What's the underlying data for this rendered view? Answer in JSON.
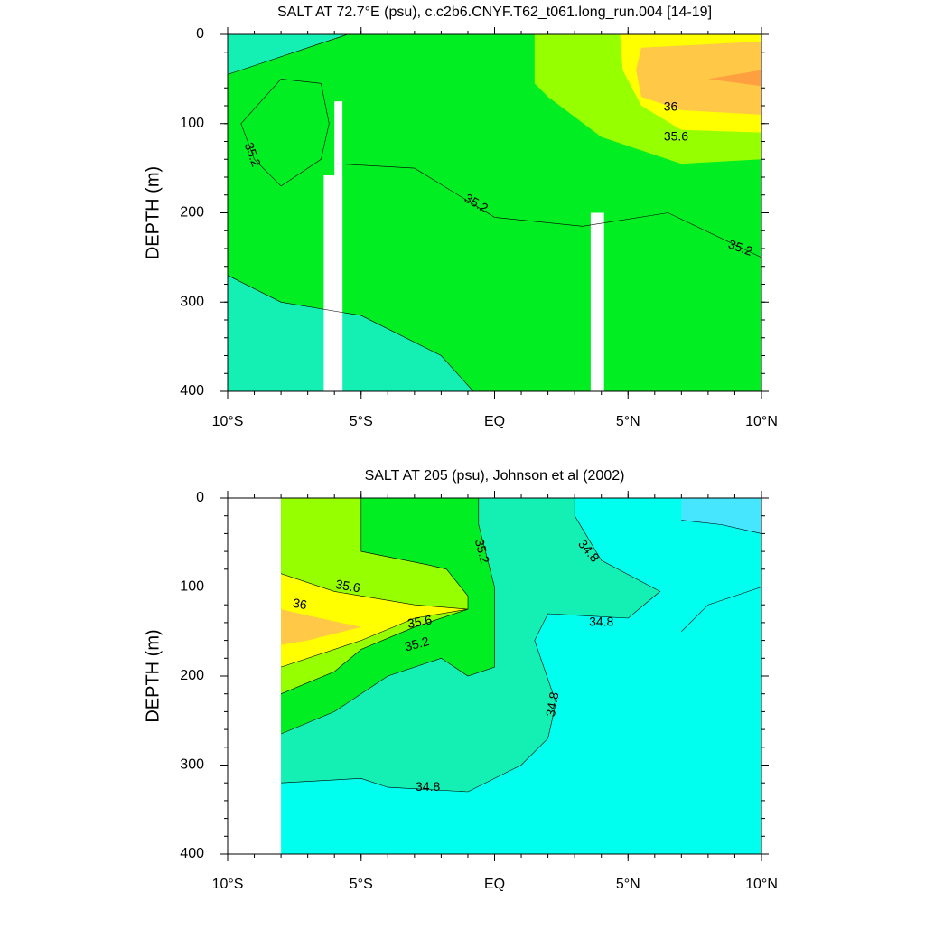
{
  "chart_data": [
    {
      "type": "contour",
      "title": "SALT AT  72.7°E (psu), c.c2b6.CNYF.T62_t061.long_run.004 [14-19]",
      "y_label": "DEPTH (m)",
      "xlim": [
        -10,
        10
      ],
      "xticks": [
        {
          "value": -10,
          "label": "10°S"
        },
        {
          "value": -5,
          "label": "5°S"
        },
        {
          "value": 0,
          "label": "EQ"
        },
        {
          "value": 5,
          "label": "5°N"
        },
        {
          "value": 10,
          "label": "10°N"
        }
      ],
      "ylim": [
        0,
        400
      ],
      "y_reversed": true,
      "yticks": [
        0,
        100,
        200,
        300,
        400
      ],
      "contour_labels": [
        35.2,
        35.2,
        35.2,
        36,
        35.6
      ]
    },
    {
      "type": "contour",
      "title": "SALT AT 205 (psu), Johnson et al (2002)",
      "y_label": "DEPTH (m)",
      "xlim": [
        -10,
        10
      ],
      "xticks": [
        {
          "value": -10,
          "label": "10°S"
        },
        {
          "value": -5,
          "label": "5°S"
        },
        {
          "value": 0,
          "label": "EQ"
        },
        {
          "value": 5,
          "label": "5°N"
        },
        {
          "value": 10,
          "label": "10°N"
        }
      ],
      "ylim": [
        0,
        400
      ],
      "y_reversed": true,
      "yticks": [
        0,
        100,
        200,
        300,
        400
      ],
      "contour_labels": [
        35.2,
        34.8,
        35.6,
        36,
        35.6,
        35.2,
        34.8,
        34.8,
        34.8
      ]
    }
  ]
}
